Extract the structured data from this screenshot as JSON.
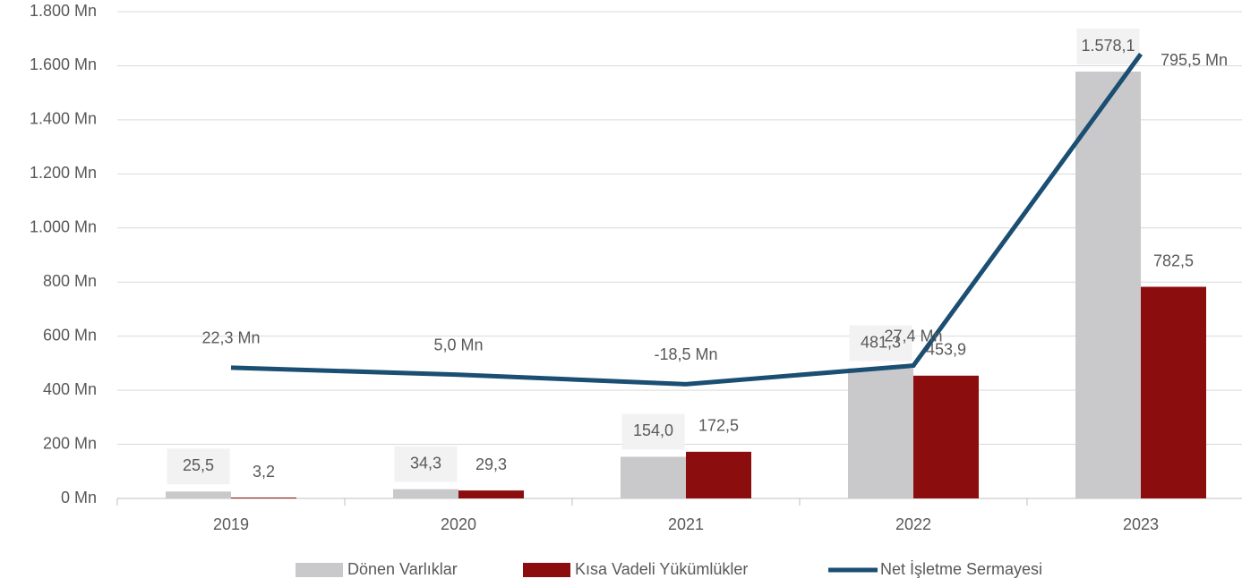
{
  "chart_data": {
    "type": "bar",
    "categories": [
      "2019",
      "2020",
      "2021",
      "2022",
      "2023"
    ],
    "series": [
      {
        "name": "Dönen Varlıklar",
        "color": "#c9c9cb",
        "values": [
          25.5,
          34.3,
          154.0,
          481.3,
          1578.1
        ],
        "value_labels": [
          "25,5",
          "34,3",
          "154,0",
          "481,3",
          "1.578,1"
        ]
      },
      {
        "name": "Kısa Vadeli Yükümlükler",
        "color": "#8b0d0d",
        "values": [
          3.2,
          29.3,
          172.5,
          453.9,
          782.5
        ],
        "value_labels": [
          "3,2",
          "29,3",
          "172,5",
          "453,9",
          "782,5"
        ]
      },
      {
        "name": "Net İşletme Sermayesi",
        "color": "#1a4e72",
        "type": "line",
        "axis": "y2",
        "values": [
          22.3,
          5.0,
          -18.5,
          27.4,
          795.5
        ],
        "value_labels": [
          "22,3 Mn",
          "5,0 Mn",
          "-18,5 Mn",
          "27,4 Mn",
          "795,5 Mn"
        ]
      }
    ],
    "ylim": [
      0,
      1800
    ],
    "yticks": [
      {
        "value": 0,
        "label": "0 Mn"
      },
      {
        "value": 200,
        "label": "200 Mn"
      },
      {
        "value": 400,
        "label": "400 Mn"
      },
      {
        "value": 600,
        "label": "600 Mn"
      },
      {
        "value": 800,
        "label": "800 Mn"
      },
      {
        "value": 1000,
        "label": "1.000 Mn"
      },
      {
        "value": 1200,
        "label": "1.200 Mn"
      },
      {
        "value": 1400,
        "label": "1.400 Mn"
      },
      {
        "value": 1600,
        "label": "1.600 Mn"
      },
      {
        "value": 1800,
        "label": "1.800 Mn"
      }
    ],
    "y2lim": [
      -300,
      900
    ],
    "grid": true,
    "legend": "bottom"
  }
}
